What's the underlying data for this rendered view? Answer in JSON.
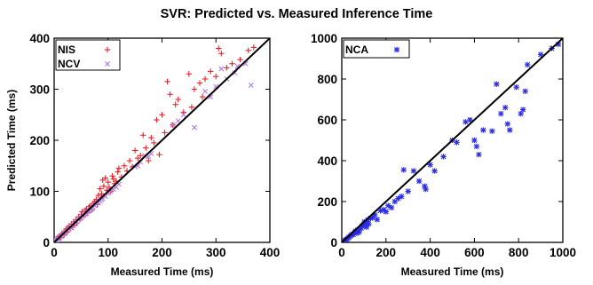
{
  "figure": {
    "title": "SVR: Predicted vs. Measured Inference Time"
  },
  "chart_data": [
    {
      "type": "scatter",
      "xlabel": "Measured Time (ms)",
      "ylabel": "Predicted Time (ms)",
      "xlim": [
        0,
        400
      ],
      "ylim": [
        0,
        400
      ],
      "xticks": [
        0,
        100,
        200,
        300,
        400
      ],
      "yticks": [
        0,
        100,
        200,
        300,
        400
      ],
      "grid": false,
      "legend_position": "top-left",
      "reference_line": [
        [
          0,
          0
        ],
        [
          400,
          400
        ]
      ],
      "series": [
        {
          "name": "NIS",
          "marker": "plus",
          "color": "#e8202a",
          "points": [
            [
              2,
              3
            ],
            [
              4,
              5
            ],
            [
              5,
              8
            ],
            [
              6,
              6
            ],
            [
              8,
              10
            ],
            [
              10,
              12
            ],
            [
              12,
              9
            ],
            [
              14,
              16
            ],
            [
              16,
              18
            ],
            [
              18,
              14
            ],
            [
              20,
              22
            ],
            [
              22,
              26
            ],
            [
              24,
              20
            ],
            [
              26,
              28
            ],
            [
              28,
              32
            ],
            [
              30,
              27
            ],
            [
              32,
              36
            ],
            [
              34,
              30
            ],
            [
              36,
              40
            ],
            [
              38,
              34
            ],
            [
              40,
              44
            ],
            [
              42,
              38
            ],
            [
              45,
              50
            ],
            [
              48,
              46
            ],
            [
              50,
              55
            ],
            [
              52,
              60
            ],
            [
              55,
              52
            ],
            [
              58,
              63
            ],
            [
              60,
              66
            ],
            [
              62,
              58
            ],
            [
              65,
              70
            ],
            [
              68,
              72
            ],
            [
              70,
              64
            ],
            [
              72,
              76
            ],
            [
              75,
              80
            ],
            [
              78,
              84
            ],
            [
              80,
              74
            ],
            [
              82,
              92
            ],
            [
              85,
              105
            ],
            [
              88,
              95
            ],
            [
              90,
              122
            ],
            [
              92,
              110
            ],
            [
              95,
              126
            ],
            [
              98,
              102
            ],
            [
              100,
              118
            ],
            [
              102,
              108
            ],
            [
              105,
              100
            ],
            [
              108,
              130
            ],
            [
              110,
              124
            ],
            [
              112,
              115
            ],
            [
              115,
              120
            ],
            [
              118,
              138
            ],
            [
              120,
              145
            ],
            [
              125,
              128
            ],
            [
              130,
              150
            ],
            [
              135,
              140
            ],
            [
              140,
              160
            ],
            [
              145,
              148
            ],
            [
              150,
              180
            ],
            [
              155,
              165
            ],
            [
              160,
              170
            ],
            [
              165,
              210
            ],
            [
              170,
              185
            ],
            [
              175,
              160
            ],
            [
              180,
              205
            ],
            [
              185,
              195
            ],
            [
              190,
              240
            ],
            [
              195,
              172
            ],
            [
              200,
              250
            ],
            [
              205,
              215
            ],
            [
              210,
              315
            ],
            [
              215,
              290
            ],
            [
              220,
              230
            ],
            [
              225,
              270
            ],
            [
              230,
              280
            ],
            [
              240,
              255
            ],
            [
              250,
              330
            ],
            [
              255,
              265
            ],
            [
              260,
              300
            ],
            [
              270,
              312
            ],
            [
              275,
              285
            ],
            [
              280,
              320
            ],
            [
              290,
              335
            ],
            [
              300,
              325
            ],
            [
              305,
              380
            ],
            [
              310,
              370
            ],
            [
              320,
              342
            ],
            [
              330,
              350
            ],
            [
              345,
              358
            ],
            [
              360,
              376
            ],
            [
              370,
              382
            ]
          ]
        },
        {
          "name": "NCV",
          "marker": "cross",
          "color": "#b27ce0",
          "points": [
            [
              2,
              2
            ],
            [
              3,
              4
            ],
            [
              5,
              4
            ],
            [
              6,
              8
            ],
            [
              8,
              7
            ],
            [
              10,
              10
            ],
            [
              12,
              13
            ],
            [
              14,
              12
            ],
            [
              16,
              15
            ],
            [
              18,
              19
            ],
            [
              20,
              18
            ],
            [
              22,
              21
            ],
            [
              25,
              24
            ],
            [
              28,
              27
            ],
            [
              30,
              30
            ],
            [
              32,
              29
            ],
            [
              35,
              34
            ],
            [
              38,
              36
            ],
            [
              40,
              39
            ],
            [
              42,
              41
            ],
            [
              45,
              44
            ],
            [
              48,
              46
            ],
            [
              50,
              48
            ],
            [
              52,
              51
            ],
            [
              55,
              53
            ],
            [
              58,
              56
            ],
            [
              60,
              57
            ],
            [
              62,
              60
            ],
            [
              65,
              62
            ],
            [
              68,
              64
            ],
            [
              70,
              66
            ],
            [
              72,
              69
            ],
            [
              75,
              72
            ],
            [
              78,
              74
            ],
            [
              80,
              77
            ],
            [
              82,
              79
            ],
            [
              85,
              81
            ],
            [
              88,
              84
            ],
            [
              90,
              86
            ],
            [
              95,
              90
            ],
            [
              100,
              96
            ],
            [
              105,
              100
            ],
            [
              110,
              104
            ],
            [
              115,
              108
            ],
            [
              120,
              114
            ],
            [
              150,
              148
            ],
            [
              155,
              150
            ],
            [
              160,
              158
            ],
            [
              168,
              170
            ],
            [
              175,
              168
            ],
            [
              180,
              174
            ],
            [
              220,
              230
            ],
            [
              230,
              238
            ],
            [
              240,
              250
            ],
            [
              260,
              225
            ],
            [
              280,
              296
            ],
            [
              290,
              285
            ],
            [
              300,
              305
            ],
            [
              310,
              340
            ],
            [
              320,
              320
            ],
            [
              335,
              332
            ],
            [
              340,
              345
            ],
            [
              355,
              350
            ],
            [
              365,
              308
            ]
          ]
        }
      ]
    },
    {
      "type": "scatter",
      "xlabel": "Measured Time (ms)",
      "ylabel": "",
      "xlim": [
        0,
        1000
      ],
      "ylim": [
        0,
        1000
      ],
      "xticks": [
        0,
        200,
        400,
        600,
        800,
        1000
      ],
      "yticks": [
        0,
        200,
        400,
        600,
        800,
        1000
      ],
      "grid": false,
      "legend_position": "top-left",
      "reference_line": [
        [
          0,
          0
        ],
        [
          1000,
          1000
        ]
      ],
      "series": [
        {
          "name": "NCA",
          "marker": "star",
          "color": "#2a2ae6",
          "points": [
            [
              8,
              5
            ],
            [
              12,
              8
            ],
            [
              18,
              12
            ],
            [
              22,
              15
            ],
            [
              28,
              20
            ],
            [
              32,
              25
            ],
            [
              38,
              30
            ],
            [
              42,
              35
            ],
            [
              48,
              40
            ],
            [
              52,
              38
            ],
            [
              58,
              48
            ],
            [
              62,
              55
            ],
            [
              68,
              45
            ],
            [
              72,
              60
            ],
            [
              78,
              50
            ],
            [
              82,
              65
            ],
            [
              88,
              70
            ],
            [
              92,
              80
            ],
            [
              98,
              85
            ],
            [
              102,
              100
            ],
            [
              108,
              95
            ],
            [
              112,
              75
            ],
            [
              118,
              110
            ],
            [
              122,
              90
            ],
            [
              130,
              118
            ],
            [
              140,
              120
            ],
            [
              150,
              135
            ],
            [
              160,
              112
            ],
            [
              175,
              155
            ],
            [
              190,
              160
            ],
            [
              200,
              150
            ],
            [
              210,
              180
            ],
            [
              225,
              170
            ],
            [
              240,
              200
            ],
            [
              255,
              215
            ],
            [
              270,
              225
            ],
            [
              280,
              355
            ],
            [
              300,
              250
            ],
            [
              325,
              350
            ],
            [
              350,
              300
            ],
            [
              375,
              275
            ],
            [
              380,
              260
            ],
            [
              400,
              380
            ],
            [
              420,
              350
            ],
            [
              460,
              420
            ],
            [
              500,
              500
            ],
            [
              520,
              490
            ],
            [
              560,
              590
            ],
            [
              580,
              600
            ],
            [
              600,
              500
            ],
            [
              610,
              470
            ],
            [
              620,
              430
            ],
            [
              640,
              550
            ],
            [
              680,
              545
            ],
            [
              700,
              775
            ],
            [
              720,
              630
            ],
            [
              740,
              660
            ],
            [
              750,
              580
            ],
            [
              760,
              550
            ],
            [
              790,
              760
            ],
            [
              810,
              630
            ],
            [
              820,
              650
            ],
            [
              830,
              740
            ],
            [
              840,
              870
            ],
            [
              900,
              920
            ],
            [
              950,
              950
            ],
            [
              980,
              970
            ]
          ]
        }
      ]
    }
  ]
}
